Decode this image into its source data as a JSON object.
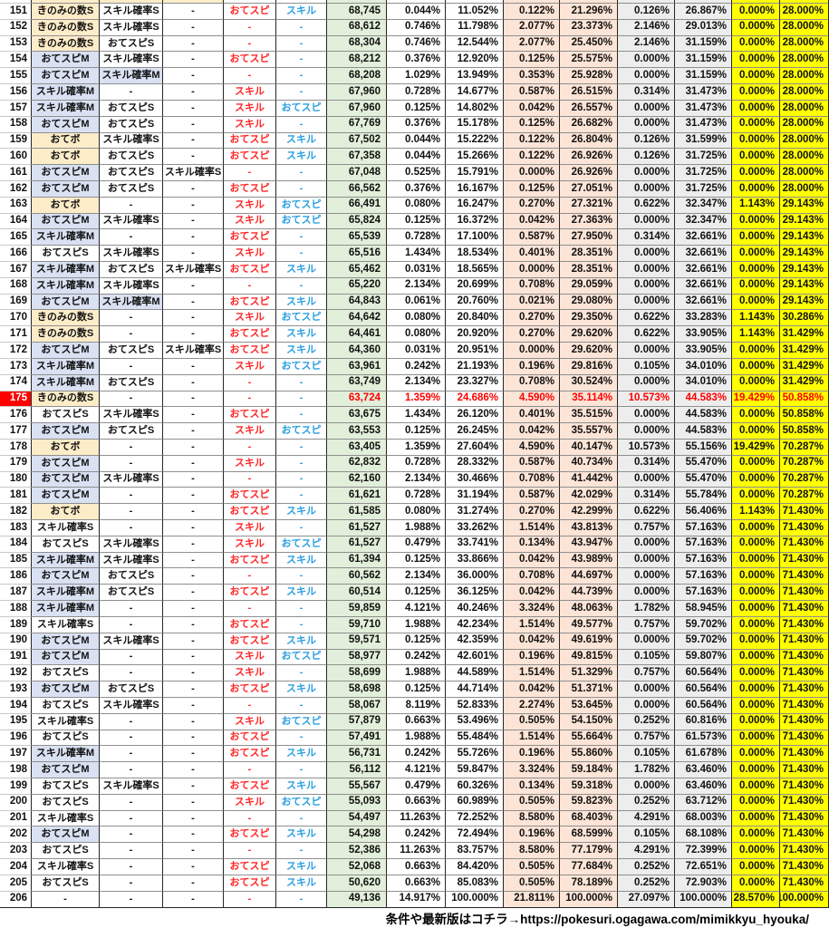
{
  "table": {
    "highlight_row": "175",
    "rows": [
      [
        "151",
        "きのみの数S",
        "スキル確率S",
        "-",
        "おてスピ",
        "スキル",
        "68,745",
        "0.044%",
        "11.052%",
        "0.122%",
        "21.296%",
        "0.126%",
        "26.867%",
        "0.000%",
        "28.000%"
      ],
      [
        "152",
        "きのみの数S",
        "スキル確率S",
        "-",
        "-",
        "-",
        "68,612",
        "0.746%",
        "11.798%",
        "2.077%",
        "23.373%",
        "2.146%",
        "29.013%",
        "0.000%",
        "28.000%"
      ],
      [
        "153",
        "きのみの数S",
        "おてスピS",
        "-",
        "-",
        "-",
        "68,304",
        "0.746%",
        "12.544%",
        "2.077%",
        "25.450%",
        "2.146%",
        "31.159%",
        "0.000%",
        "28.000%"
      ],
      [
        "154",
        "おてスピM",
        "スキル確率S",
        "-",
        "おてスピ",
        "-",
        "68,212",
        "0.376%",
        "12.920%",
        "0.125%",
        "25.575%",
        "0.000%",
        "31.159%",
        "0.000%",
        "28.000%"
      ],
      [
        "155",
        "おてスピM",
        "スキル確率M",
        "-",
        "-",
        "-",
        "68,208",
        "1.029%",
        "13.949%",
        "0.353%",
        "25.928%",
        "0.000%",
        "31.159%",
        "0.000%",
        "28.000%"
      ],
      [
        "156",
        "スキル確率M",
        "-",
        "-",
        "スキル",
        "-",
        "67,960",
        "0.728%",
        "14.677%",
        "0.587%",
        "26.515%",
        "0.314%",
        "31.473%",
        "0.000%",
        "28.000%"
      ],
      [
        "157",
        "スキル確率M",
        "おてスピS",
        "-",
        "スキル",
        "おてスピ",
        "67,960",
        "0.125%",
        "14.802%",
        "0.042%",
        "26.557%",
        "0.000%",
        "31.473%",
        "0.000%",
        "28.000%"
      ],
      [
        "158",
        "おてスピM",
        "おてスピS",
        "-",
        "スキル",
        "-",
        "67,769",
        "0.376%",
        "15.178%",
        "0.125%",
        "26.682%",
        "0.000%",
        "31.473%",
        "0.000%",
        "28.000%"
      ],
      [
        "159",
        "おてボ",
        "スキル確率S",
        "-",
        "おてスピ",
        "スキル",
        "67,502",
        "0.044%",
        "15.222%",
        "0.122%",
        "26.804%",
        "0.126%",
        "31.599%",
        "0.000%",
        "28.000%"
      ],
      [
        "160",
        "おてボ",
        "おてスピS",
        "-",
        "おてスピ",
        "スキル",
        "67,358",
        "0.044%",
        "15.266%",
        "0.122%",
        "26.926%",
        "0.126%",
        "31.725%",
        "0.000%",
        "28.000%"
      ],
      [
        "161",
        "おてスピM",
        "おてスピS",
        "スキル確率S",
        "-",
        "-",
        "67,048",
        "0.525%",
        "15.791%",
        "0.000%",
        "26.926%",
        "0.000%",
        "31.725%",
        "0.000%",
        "28.000%"
      ],
      [
        "162",
        "おてスピM",
        "おてスピS",
        "-",
        "おてスピ",
        "-",
        "66,562",
        "0.376%",
        "16.167%",
        "0.125%",
        "27.051%",
        "0.000%",
        "31.725%",
        "0.000%",
        "28.000%"
      ],
      [
        "163",
        "おてボ",
        "-",
        "-",
        "スキル",
        "おてスピ",
        "66,491",
        "0.080%",
        "16.247%",
        "0.270%",
        "27.321%",
        "0.622%",
        "32.347%",
        "1.143%",
        "29.143%"
      ],
      [
        "164",
        "おてスピM",
        "スキル確率S",
        "-",
        "スキル",
        "おてスピ",
        "65,824",
        "0.125%",
        "16.372%",
        "0.042%",
        "27.363%",
        "0.000%",
        "32.347%",
        "0.000%",
        "29.143%"
      ],
      [
        "165",
        "スキル確率M",
        "-",
        "-",
        "おてスピ",
        "-",
        "65,539",
        "0.728%",
        "17.100%",
        "0.587%",
        "27.950%",
        "0.314%",
        "32.661%",
        "0.000%",
        "29.143%"
      ],
      [
        "166",
        "おてスピS",
        "スキル確率S",
        "-",
        "スキル",
        "-",
        "65,516",
        "1.434%",
        "18.534%",
        "0.401%",
        "28.351%",
        "0.000%",
        "32.661%",
        "0.000%",
        "29.143%"
      ],
      [
        "167",
        "スキル確率M",
        "おてスピS",
        "スキル確率S",
        "おてスピ",
        "スキル",
        "65,462",
        "0.031%",
        "18.565%",
        "0.000%",
        "28.351%",
        "0.000%",
        "32.661%",
        "0.000%",
        "29.143%"
      ],
      [
        "168",
        "スキル確率M",
        "スキル確率S",
        "-",
        "-",
        "-",
        "65,220",
        "2.134%",
        "20.699%",
        "0.708%",
        "29.059%",
        "0.000%",
        "32.661%",
        "0.000%",
        "29.143%"
      ],
      [
        "169",
        "おてスピM",
        "スキル確率M",
        "-",
        "おてスピ",
        "スキル",
        "64,843",
        "0.061%",
        "20.760%",
        "0.021%",
        "29.080%",
        "0.000%",
        "32.661%",
        "0.000%",
        "29.143%"
      ],
      [
        "170",
        "きのみの数S",
        "-",
        "-",
        "スキル",
        "おてスピ",
        "64,642",
        "0.080%",
        "20.840%",
        "0.270%",
        "29.350%",
        "0.622%",
        "33.283%",
        "1.143%",
        "30.286%"
      ],
      [
        "171",
        "きのみの数S",
        "-",
        "-",
        "おてスピ",
        "スキル",
        "64,461",
        "0.080%",
        "20.920%",
        "0.270%",
        "29.620%",
        "0.622%",
        "33.905%",
        "1.143%",
        "31.429%"
      ],
      [
        "172",
        "おてスピM",
        "おてスピS",
        "スキル確率S",
        "おてスピ",
        "スキル",
        "64,360",
        "0.031%",
        "20.951%",
        "0.000%",
        "29.620%",
        "0.000%",
        "33.905%",
        "0.000%",
        "31.429%"
      ],
      [
        "173",
        "スキル確率M",
        "-",
        "-",
        "スキル",
        "おてスピ",
        "63,961",
        "0.242%",
        "21.193%",
        "0.196%",
        "29.816%",
        "0.105%",
        "34.010%",
        "0.000%",
        "31.429%"
      ],
      [
        "174",
        "スキル確率M",
        "おてスピS",
        "-",
        "-",
        "-",
        "63,749",
        "2.134%",
        "23.327%",
        "0.708%",
        "30.524%",
        "0.000%",
        "34.010%",
        "0.000%",
        "31.429%"
      ],
      [
        "175",
        "きのみの数S",
        "-",
        "-",
        "-",
        "-",
        "63,724",
        "1.359%",
        "24.686%",
        "4.590%",
        "35.114%",
        "10.573%",
        "44.583%",
        "19.429%",
        "50.858%"
      ],
      [
        "176",
        "おてスピS",
        "スキル確率S",
        "-",
        "おてスピ",
        "-",
        "63,675",
        "1.434%",
        "26.120%",
        "0.401%",
        "35.515%",
        "0.000%",
        "44.583%",
        "0.000%",
        "50.858%"
      ],
      [
        "177",
        "おてスピM",
        "おてスピS",
        "-",
        "スキル",
        "おてスピ",
        "63,553",
        "0.125%",
        "26.245%",
        "0.042%",
        "35.557%",
        "0.000%",
        "44.583%",
        "0.000%",
        "50.858%"
      ],
      [
        "178",
        "おてボ",
        "-",
        "-",
        "-",
        "-",
        "63,405",
        "1.359%",
        "27.604%",
        "4.590%",
        "40.147%",
        "10.573%",
        "55.156%",
        "19.429%",
        "70.287%"
      ],
      [
        "179",
        "おてスピM",
        "-",
        "-",
        "スキル",
        "-",
        "62,832",
        "0.728%",
        "28.332%",
        "0.587%",
        "40.734%",
        "0.314%",
        "55.470%",
        "0.000%",
        "70.287%"
      ],
      [
        "180",
        "おてスピM",
        "スキル確率S",
        "-",
        "-",
        "-",
        "62,160",
        "2.134%",
        "30.466%",
        "0.708%",
        "41.442%",
        "0.000%",
        "55.470%",
        "0.000%",
        "70.287%"
      ],
      [
        "181",
        "おてスピM",
        "-",
        "-",
        "おてスピ",
        "-",
        "61,621",
        "0.728%",
        "31.194%",
        "0.587%",
        "42.029%",
        "0.314%",
        "55.784%",
        "0.000%",
        "70.287%"
      ],
      [
        "182",
        "おてボ",
        "-",
        "-",
        "おてスピ",
        "スキル",
        "61,585",
        "0.080%",
        "31.274%",
        "0.270%",
        "42.299%",
        "0.622%",
        "56.406%",
        "1.143%",
        "71.430%"
      ],
      [
        "183",
        "スキル確率S",
        "-",
        "-",
        "スキル",
        "-",
        "61,527",
        "1.988%",
        "33.262%",
        "1.514%",
        "43.813%",
        "0.757%",
        "57.163%",
        "0.000%",
        "71.430%"
      ],
      [
        "184",
        "おてスピS",
        "スキル確率S",
        "-",
        "スキル",
        "おてスピ",
        "61,527",
        "0.479%",
        "33.741%",
        "0.134%",
        "43.947%",
        "0.000%",
        "57.163%",
        "0.000%",
        "71.430%"
      ],
      [
        "185",
        "スキル確率M",
        "スキル確率S",
        "-",
        "おてスピ",
        "スキル",
        "61,394",
        "0.125%",
        "33.866%",
        "0.042%",
        "43.989%",
        "0.000%",
        "57.163%",
        "0.000%",
        "71.430%"
      ],
      [
        "186",
        "おてスピM",
        "おてスピS",
        "-",
        "-",
        "-",
        "60,562",
        "2.134%",
        "36.000%",
        "0.708%",
        "44.697%",
        "0.000%",
        "57.163%",
        "0.000%",
        "71.430%"
      ],
      [
        "187",
        "スキル確率M",
        "おてスピS",
        "-",
        "おてスピ",
        "スキル",
        "60,514",
        "0.125%",
        "36.125%",
        "0.042%",
        "44.739%",
        "0.000%",
        "57.163%",
        "0.000%",
        "71.430%"
      ],
      [
        "188",
        "スキル確率M",
        "-",
        "-",
        "-",
        "-",
        "59,859",
        "4.121%",
        "40.246%",
        "3.324%",
        "48.063%",
        "1.782%",
        "58.945%",
        "0.000%",
        "71.430%"
      ],
      [
        "189",
        "スキル確率S",
        "-",
        "-",
        "おてスピ",
        "-",
        "59,710",
        "1.988%",
        "42.234%",
        "1.514%",
        "49.577%",
        "0.757%",
        "59.702%",
        "0.000%",
        "71.430%"
      ],
      [
        "190",
        "おてスピM",
        "スキル確率S",
        "-",
        "おてスピ",
        "スキル",
        "59,571",
        "0.125%",
        "42.359%",
        "0.042%",
        "49.619%",
        "0.000%",
        "59.702%",
        "0.000%",
        "71.430%"
      ],
      [
        "191",
        "おてスピM",
        "-",
        "-",
        "スキル",
        "おてスピ",
        "58,977",
        "0.242%",
        "42.601%",
        "0.196%",
        "49.815%",
        "0.105%",
        "59.807%",
        "0.000%",
        "71.430%"
      ],
      [
        "192",
        "おてスピS",
        "-",
        "-",
        "スキル",
        "-",
        "58,699",
        "1.988%",
        "44.589%",
        "1.514%",
        "51.329%",
        "0.757%",
        "60.564%",
        "0.000%",
        "71.430%"
      ],
      [
        "193",
        "おてスピM",
        "おてスピS",
        "-",
        "おてスピ",
        "スキル",
        "58,698",
        "0.125%",
        "44.714%",
        "0.042%",
        "51.371%",
        "0.000%",
        "60.564%",
        "0.000%",
        "71.430%"
      ],
      [
        "194",
        "おてスピS",
        "スキル確率S",
        "-",
        "-",
        "-",
        "58,067",
        "8.119%",
        "52.833%",
        "2.274%",
        "53.645%",
        "0.000%",
        "60.564%",
        "0.000%",
        "71.430%"
      ],
      [
        "195",
        "スキル確率S",
        "-",
        "-",
        "スキル",
        "おてスピ",
        "57,879",
        "0.663%",
        "53.496%",
        "0.505%",
        "54.150%",
        "0.252%",
        "60.816%",
        "0.000%",
        "71.430%"
      ],
      [
        "196",
        "おてスピS",
        "-",
        "-",
        "おてスピ",
        "-",
        "57,491",
        "1.988%",
        "55.484%",
        "1.514%",
        "55.664%",
        "0.757%",
        "61.573%",
        "0.000%",
        "71.430%"
      ],
      [
        "197",
        "スキル確率M",
        "-",
        "-",
        "おてスピ",
        "スキル",
        "56,731",
        "0.242%",
        "55.726%",
        "0.196%",
        "55.860%",
        "0.105%",
        "61.678%",
        "0.000%",
        "71.430%"
      ],
      [
        "198",
        "おてスピM",
        "-",
        "-",
        "-",
        "-",
        "56,112",
        "4.121%",
        "59.847%",
        "3.324%",
        "59.184%",
        "1.782%",
        "63.460%",
        "0.000%",
        "71.430%"
      ],
      [
        "199",
        "おてスピS",
        "スキル確率S",
        "-",
        "おてスピ",
        "スキル",
        "55,567",
        "0.479%",
        "60.326%",
        "0.134%",
        "59.318%",
        "0.000%",
        "63.460%",
        "0.000%",
        "71.430%"
      ],
      [
        "200",
        "おてスピS",
        "-",
        "-",
        "スキル",
        "おてスピ",
        "55,093",
        "0.663%",
        "60.989%",
        "0.505%",
        "59.823%",
        "0.252%",
        "63.712%",
        "0.000%",
        "71.430%"
      ],
      [
        "201",
        "スキル確率S",
        "-",
        "-",
        "-",
        "-",
        "54,497",
        "11.263%",
        "72.252%",
        "8.580%",
        "68.403%",
        "4.291%",
        "68.003%",
        "0.000%",
        "71.430%"
      ],
      [
        "202",
        "おてスピM",
        "-",
        "-",
        "おてスピ",
        "スキル",
        "54,298",
        "0.242%",
        "72.494%",
        "0.196%",
        "68.599%",
        "0.105%",
        "68.108%",
        "0.000%",
        "71.430%"
      ],
      [
        "203",
        "おてスピS",
        "-",
        "-",
        "-",
        "-",
        "52,386",
        "11.263%",
        "83.757%",
        "8.580%",
        "77.179%",
        "4.291%",
        "72.399%",
        "0.000%",
        "71.430%"
      ],
      [
        "204",
        "スキル確率S",
        "-",
        "-",
        "おてスピ",
        "スキル",
        "52,068",
        "0.663%",
        "84.420%",
        "0.505%",
        "77.684%",
        "0.252%",
        "72.651%",
        "0.000%",
        "71.430%"
      ],
      [
        "205",
        "おてスピS",
        "-",
        "-",
        "おてスピ",
        "スキル",
        "50,620",
        "0.663%",
        "85.083%",
        "0.505%",
        "78.189%",
        "0.252%",
        "72.903%",
        "0.000%",
        "71.430%"
      ],
      [
        "206",
        "-",
        "-",
        "-",
        "-",
        "-",
        "49,136",
        "14.917%",
        "100.000%",
        "21.811%",
        "100.000%",
        "27.097%",
        "100.000%",
        "28.570%",
        "100.000%"
      ]
    ],
    "skill_tint_colors": {
      "きのみの数S": "#fdecc8",
      "おてボ": "#fdecc8",
      "おてスピM": "#d9e1f2",
      "スキル確率M": "#d9e1f2"
    },
    "column_colors": {
      "count": "#e2efda",
      "pair2": "#fce4d6",
      "pair3": "#ededed",
      "pair4": "#ffff00",
      "down_text": "#ff2626",
      "up_text": "#2b9fe0",
      "highlight_bg": "#ff0000",
      "highlight_text": "#ff0000"
    }
  },
  "footer": {
    "note": "条件や最新版はコチラ→https://pokesuri.ogagawa.com/mimikkyu_hyouka/"
  }
}
